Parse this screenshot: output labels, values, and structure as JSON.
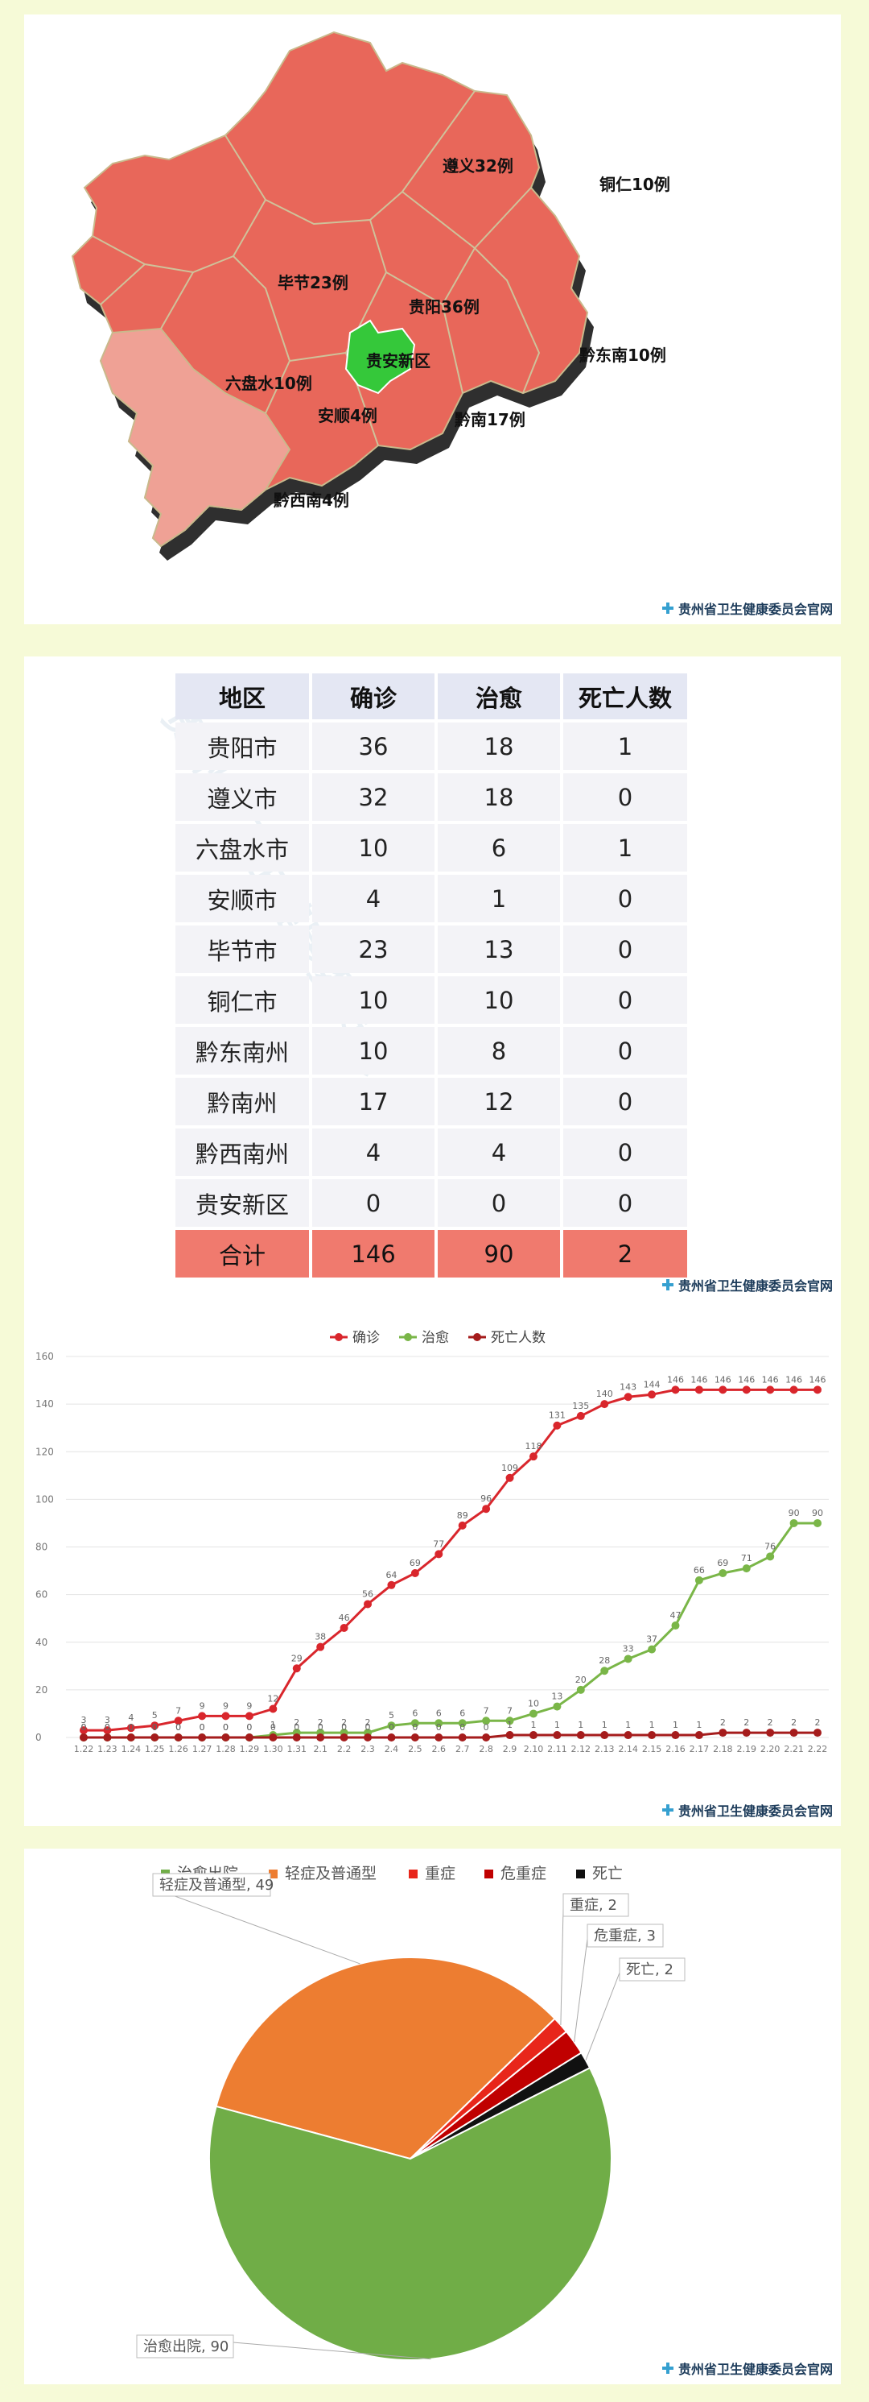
{
  "map": {
    "regions": [
      {
        "key": "zunyi",
        "label": "遵义32例"
      },
      {
        "key": "tongren",
        "label": "铜仁10例"
      },
      {
        "key": "bijie",
        "label": "毕节23例"
      },
      {
        "key": "guiyang",
        "label": "贵阳36例"
      },
      {
        "key": "guian",
        "label": "贵安新区"
      },
      {
        "key": "qiandongnan",
        "label": "黔东南10例"
      },
      {
        "key": "liupanshui",
        "label": "六盘水10例"
      },
      {
        "key": "anshun",
        "label": "安顺4例"
      },
      {
        "key": "qiannan",
        "label": "黔南17例"
      },
      {
        "key": "qianxinan",
        "label": "黔西南4例"
      }
    ],
    "colors": {
      "main": "#e8675a",
      "light": "#efa195",
      "guian": "#35c83a",
      "shadow": "#3a3a3a"
    }
  },
  "source_mark": "贵州省卫生健康委员会官网",
  "table": {
    "headers": [
      "地区",
      "确诊",
      "治愈",
      "死亡人数"
    ],
    "rows": [
      [
        "贵阳市",
        "36",
        "18",
        "1"
      ],
      [
        "遵义市",
        "32",
        "18",
        "0"
      ],
      [
        "六盘水市",
        "10",
        "6",
        "1"
      ],
      [
        "安顺市",
        "4",
        "1",
        "0"
      ],
      [
        "毕节市",
        "23",
        "13",
        "0"
      ],
      [
        "铜仁市",
        "10",
        "10",
        "0"
      ],
      [
        "黔东南州",
        "10",
        "8",
        "0"
      ],
      [
        "黔南州",
        "17",
        "12",
        "0"
      ],
      [
        "黔西南州",
        "4",
        "4",
        "0"
      ],
      [
        "贵安新区",
        "0",
        "0",
        "0"
      ]
    ],
    "total": [
      "合计",
      "146",
      "90",
      "2"
    ]
  },
  "chart_data": [
    {
      "type": "line",
      "x": [
        "1.22",
        "1.23",
        "1.24",
        "1.25",
        "1.26",
        "1.27",
        "1.28",
        "1.29",
        "1.30",
        "1.31",
        "2.1",
        "2.2",
        "2.3",
        "2.4",
        "2.5",
        "2.6",
        "2.7",
        "2.8",
        "2.9",
        "2.10",
        "2.11",
        "2.12",
        "2.13",
        "2.14",
        "2.15",
        "2.16",
        "2.17",
        "2.18",
        "2.19",
        "2.20",
        "2.21",
        "2.22"
      ],
      "ylim": [
        0,
        160
      ],
      "yticks": [
        0,
        20,
        40,
        60,
        80,
        100,
        120,
        140,
        160
      ],
      "grid": true,
      "legend": "top",
      "series": [
        {
          "name": "确诊",
          "color": "#d9262c",
          "values": [
            3,
            3,
            4,
            5,
            7,
            9,
            9,
            9,
            12,
            29,
            38,
            46,
            56,
            64,
            69,
            77,
            89,
            96,
            109,
            118,
            131,
            135,
            140,
            143,
            144,
            146,
            146,
            146,
            146,
            146,
            146,
            146
          ]
        },
        {
          "name": "治愈",
          "color": "#7ab648",
          "values": [
            0,
            0,
            0,
            0,
            0,
            0,
            0,
            0,
            1,
            2,
            2,
            2,
            2,
            5,
            6,
            6,
            6,
            7,
            7,
            10,
            13,
            20,
            28,
            33,
            37,
            47,
            66,
            69,
            71,
            76,
            90,
            90
          ]
        },
        {
          "name": "死亡人数",
          "color": "#a51c1c",
          "values": [
            0,
            0,
            0,
            0,
            0,
            0,
            0,
            0,
            0,
            0,
            0,
            0,
            0,
            0,
            0,
            0,
            0,
            0,
            1,
            1,
            1,
            1,
            1,
            1,
            1,
            1,
            1,
            2,
            2,
            2,
            2,
            2
          ]
        }
      ]
    },
    {
      "type": "pie",
      "legend": "top",
      "slices": [
        {
          "name": "治愈出院",
          "value": 90,
          "color": "#70ad47",
          "label": "治愈出院, 90"
        },
        {
          "name": "轻症及普通型",
          "value": 49,
          "color": "#ed7d31",
          "label": "轻症及普通型, 49"
        },
        {
          "name": "重症",
          "value": 2,
          "color": "#e8261b",
          "label": "重症, 2"
        },
        {
          "name": "危重症",
          "value": 3,
          "color": "#c00000",
          "label": "危重症, 3"
        },
        {
          "name": "死亡",
          "value": 2,
          "color": "#111111",
          "label": "死亡, 2"
        }
      ]
    }
  ]
}
